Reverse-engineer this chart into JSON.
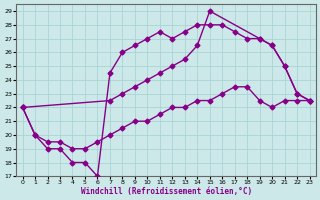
{
  "xlabel": "Windchill (Refroidissement éolien,°C)",
  "bg_color": "#cce8e8",
  "line_color": "#880088",
  "grid_color": "#aad4d4",
  "xlim": [
    -0.5,
    23.5
  ],
  "ylim": [
    17,
    29.5
  ],
  "xticks": [
    0,
    1,
    2,
    3,
    4,
    5,
    6,
    7,
    8,
    9,
    10,
    11,
    12,
    13,
    14,
    15,
    16,
    17,
    18,
    19,
    20,
    21,
    22,
    23
  ],
  "yticks": [
    17,
    18,
    19,
    20,
    21,
    22,
    23,
    24,
    25,
    26,
    27,
    28,
    29
  ],
  "line1_x": [
    0,
    1,
    2,
    3,
    4,
    5,
    6,
    7,
    8,
    9,
    10,
    11,
    12,
    13,
    14,
    15,
    16,
    17,
    18,
    19,
    20,
    21,
    22,
    23
  ],
  "line1_y": [
    22,
    20,
    19,
    19,
    18,
    18,
    17,
    24.5,
    26.0,
    26.5,
    27.0,
    27.5,
    27.0,
    27.5,
    28.0,
    28.0,
    28.0,
    27.5,
    27.0,
    27.0,
    26.5,
    25.0,
    23.0,
    22.5
  ],
  "line2_x": [
    0,
    7,
    8,
    9,
    10,
    11,
    12,
    13,
    14,
    15,
    19,
    20,
    21,
    22,
    23
  ],
  "line2_y": [
    22,
    22.5,
    23.0,
    23.5,
    24.0,
    24.5,
    25.0,
    25.5,
    26.5,
    29.0,
    27.0,
    26.5,
    25.0,
    23.0,
    22.5
  ],
  "line3_x": [
    0,
    1,
    2,
    3,
    4,
    5,
    6,
    7,
    8,
    9,
    10,
    11,
    12,
    13,
    14,
    15,
    16,
    17,
    18,
    19,
    20,
    21,
    22,
    23
  ],
  "line3_y": [
    22,
    20,
    19.5,
    19.5,
    19.0,
    19.0,
    19.5,
    20.0,
    20.5,
    21.0,
    21.0,
    21.5,
    22.0,
    22.0,
    22.5,
    22.5,
    23.0,
    23.5,
    23.5,
    22.5,
    22.0,
    22.5,
    22.5,
    22.5
  ],
  "marker": "D",
  "markersize": 2.5,
  "linewidth": 1.0
}
